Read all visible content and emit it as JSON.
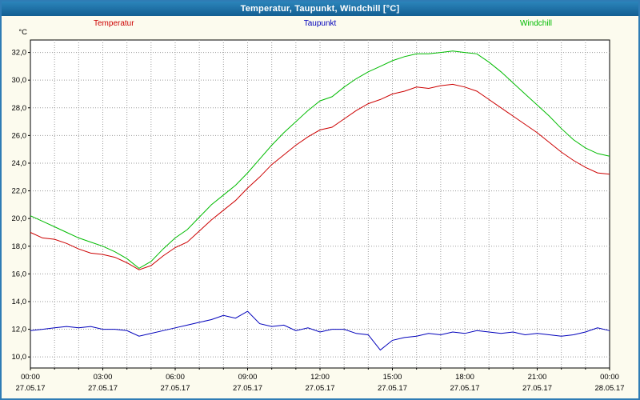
{
  "window": {
    "title": "Temperatur, Taupunkt, Windchill [°C]"
  },
  "legend": [
    {
      "label": "Temperatur",
      "color": "#cc0000"
    },
    {
      "label": "Taupunkt",
      "color": "#0000bb"
    },
    {
      "label": "Windchill",
      "color": "#00bb00"
    }
  ],
  "chart_data": {
    "type": "line",
    "title": "Temperatur, Taupunkt, Windchill [°C]",
    "ylabel": "°C",
    "xlabel": "",
    "grid": true,
    "legend_position": "top",
    "xlim": [
      0,
      24
    ],
    "ylim": [
      9.2,
      32.9
    ],
    "y_tick_values": [
      32,
      30,
      28,
      26,
      24,
      22,
      20,
      18,
      16,
      14,
      12,
      10
    ],
    "y_tick_labels": [
      "32,0",
      "30,0",
      "28,0",
      "26,0",
      "24,0",
      "22,0",
      "20,0",
      "18,0",
      "16,0",
      "14,0",
      "12,0",
      "10,0"
    ],
    "x_tick_hours": [
      0,
      3,
      6,
      9,
      12,
      15,
      18,
      21,
      24
    ],
    "x_tick_labels": [
      "00:00",
      "03:00",
      "06:00",
      "09:00",
      "12:00",
      "15:00",
      "18:00",
      "21:00",
      "00:00"
    ],
    "x_date_labels": [
      "27.05.17",
      "27.05.17",
      "27.05.17",
      "27.05.17",
      "27.05.17",
      "27.05.17",
      "27.05.17",
      "27.05.17",
      "28.05.17"
    ],
    "x_step_hours": 0.5,
    "series": [
      {
        "name": "Temperatur",
        "color": "#cc0000",
        "values": [
          19.0,
          18.6,
          18.5,
          18.2,
          17.8,
          17.5,
          17.4,
          17.2,
          16.8,
          16.3,
          16.6,
          17.3,
          17.9,
          18.3,
          19.1,
          19.9,
          20.6,
          21.3,
          22.2,
          23.0,
          23.9,
          24.6,
          25.3,
          25.9,
          26.4,
          26.6,
          27.2,
          27.8,
          28.3,
          28.6,
          29.0,
          29.2,
          29.5,
          29.4,
          29.6,
          29.7,
          29.5,
          29.2,
          28.6,
          28.0,
          27.4,
          26.8,
          26.2,
          25.5,
          24.8,
          24.2,
          23.7,
          23.3,
          23.2
        ]
      },
      {
        "name": "Taupunkt",
        "color": "#0000bb",
        "values": [
          11.9,
          12.0,
          12.1,
          12.2,
          12.1,
          12.2,
          12.0,
          12.0,
          11.9,
          11.5,
          11.7,
          11.9,
          12.1,
          12.3,
          12.5,
          12.7,
          13.0,
          12.8,
          13.3,
          12.4,
          12.2,
          12.3,
          11.9,
          12.1,
          11.8,
          12.0,
          12.0,
          11.7,
          11.6,
          10.5,
          11.2,
          11.4,
          11.5,
          11.7,
          11.6,
          11.8,
          11.7,
          11.9,
          11.8,
          11.7,
          11.8,
          11.6,
          11.7,
          11.6,
          11.5,
          11.6,
          11.8,
          12.1,
          11.9
        ]
      },
      {
        "name": "Windchill",
        "color": "#00bb00",
        "values": [
          20.2,
          19.8,
          19.4,
          19.0,
          18.6,
          18.3,
          18.0,
          17.6,
          17.1,
          16.4,
          16.9,
          17.8,
          18.6,
          19.2,
          20.1,
          21.0,
          21.7,
          22.4,
          23.3,
          24.3,
          25.3,
          26.2,
          27.0,
          27.8,
          28.5,
          28.8,
          29.5,
          30.1,
          30.6,
          31.0,
          31.4,
          31.7,
          31.9,
          31.9,
          32.0,
          32.1,
          32.0,
          31.9,
          31.3,
          30.6,
          29.8,
          29.0,
          28.2,
          27.4,
          26.5,
          25.7,
          25.1,
          24.7,
          24.5
        ]
      }
    ]
  }
}
